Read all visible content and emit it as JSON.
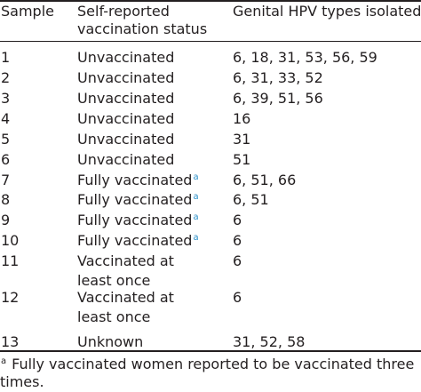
{
  "headers": {
    "sample": "Sample",
    "status_line1": "Self-reported",
    "status_line2": "vaccination status",
    "types": "Genital HPV types isolated"
  },
  "rows": [
    {
      "sample": "1",
      "status1": "Unvaccinated",
      "status2": "",
      "sup": "",
      "types": "6, 18, 31, 53, 56, 59"
    },
    {
      "sample": "2",
      "status1": "Unvaccinated",
      "status2": "",
      "sup": "",
      "types": "6, 31, 33, 52"
    },
    {
      "sample": "3",
      "status1": "Unvaccinated",
      "status2": "",
      "sup": "",
      "types": "6, 39, 51, 56"
    },
    {
      "sample": "4",
      "status1": "Unvaccinated",
      "status2": "",
      "sup": "",
      "types": "16"
    },
    {
      "sample": "5",
      "status1": "Unvaccinated",
      "status2": "",
      "sup": "",
      "types": "31"
    },
    {
      "sample": "6",
      "status1": "Unvaccinated",
      "status2": "",
      "sup": "",
      "types": "51"
    },
    {
      "sample": "7",
      "status1": "Fully vaccinated",
      "status2": "",
      "sup": "a",
      "types": "6, 51, 66"
    },
    {
      "sample": "8",
      "status1": "Fully vaccinated",
      "status2": "",
      "sup": "a",
      "types": "6, 51"
    },
    {
      "sample": "9",
      "status1": "Fully vaccinated",
      "status2": "",
      "sup": "a",
      "types": "6"
    },
    {
      "sample": "10",
      "status1": "Fully vaccinated",
      "status2": "",
      "sup": "a",
      "types": "6"
    },
    {
      "sample": "11",
      "status1": "Vaccinated at",
      "status2": "least once",
      "sup": "",
      "types": "6"
    },
    {
      "sample": "12",
      "status1": "Vaccinated at",
      "status2": "least once",
      "sup": "",
      "types": "6"
    },
    {
      "sample": "13",
      "status1": "Unknown",
      "status2": "",
      "sup": "",
      "types": "31, 52, 58"
    }
  ],
  "footnote": {
    "marker": "a",
    "line1": "Fully vaccinated women reported to be vaccinated three",
    "line2": "times."
  },
  "colors": {
    "text": "#231f20",
    "footnote_marker": "#2a8fc8"
  }
}
